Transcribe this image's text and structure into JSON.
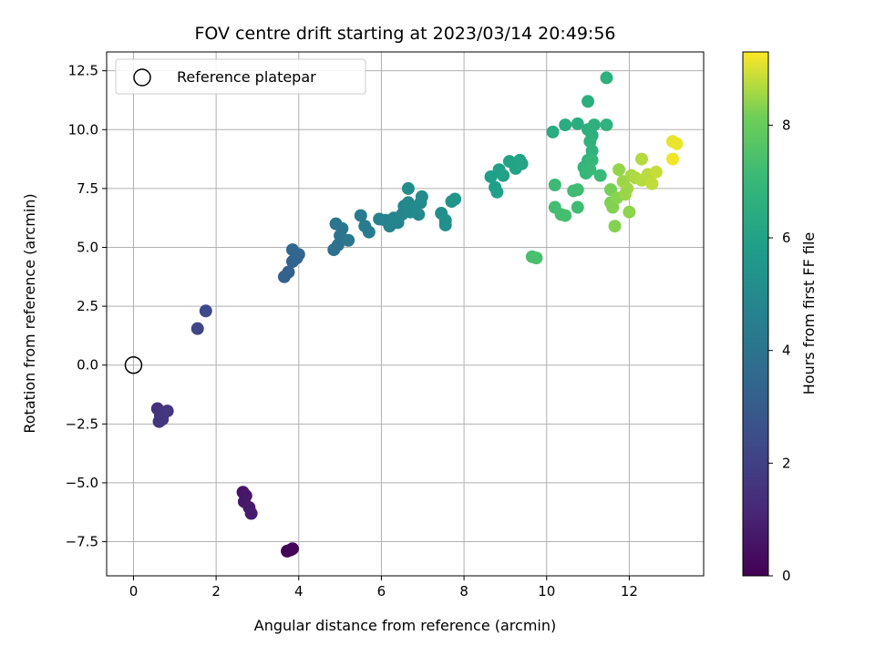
{
  "chart_data": {
    "type": "scatter",
    "title": "FOV centre drift starting at 2023/03/14 20:49:56",
    "xlabel": "Angular distance from reference (arcmin)",
    "ylabel": "Rotation from reference (arcmin)",
    "xlim": [
      -0.65,
      13.8
    ],
    "ylim": [
      -8.95,
      13.3
    ],
    "xticks": [
      0,
      2,
      4,
      6,
      8,
      10,
      12
    ],
    "yticks": [
      -7.5,
      -5.0,
      -2.5,
      0.0,
      2.5,
      5.0,
      7.5,
      10.0,
      12.5
    ],
    "xtick_labels": [
      "0",
      "2",
      "4",
      "6",
      "8",
      "10",
      "12"
    ],
    "ytick_labels": [
      "−7.5",
      "−5.0",
      "−2.5",
      "0.0",
      "2.5",
      "5.0",
      "7.5",
      "10.0",
      "12.5"
    ],
    "grid": true,
    "colormap": "viridis",
    "colorbar": {
      "label": "Hours from first FF file",
      "range": [
        0,
        9.3
      ],
      "ticks": [
        0,
        2,
        4,
        6,
        8
      ],
      "tick_labels": [
        "0",
        "2",
        "4",
        "6",
        "8"
      ]
    },
    "legend": {
      "placement": "top-left",
      "entries": [
        {
          "label": "Reference platepar",
          "marker": "open-circle"
        }
      ]
    },
    "reference_point": {
      "x": 0,
      "y": 0
    },
    "points": [
      {
        "x": 3.72,
        "y": -7.9,
        "h": 0.05
      },
      {
        "x": 3.8,
        "y": -7.85,
        "h": 0.1
      },
      {
        "x": 3.85,
        "y": -7.8,
        "h": 0.15
      },
      {
        "x": 2.65,
        "y": -5.4,
        "h": 0.6
      },
      {
        "x": 2.72,
        "y": -5.55,
        "h": 0.65
      },
      {
        "x": 2.68,
        "y": -5.8,
        "h": 0.7
      },
      {
        "x": 2.8,
        "y": -6.05,
        "h": 0.75
      },
      {
        "x": 2.85,
        "y": -6.3,
        "h": 0.8
      },
      {
        "x": 0.58,
        "y": -1.85,
        "h": 1.5
      },
      {
        "x": 0.65,
        "y": -2.15,
        "h": 1.55
      },
      {
        "x": 0.62,
        "y": -2.4,
        "h": 1.6
      },
      {
        "x": 0.7,
        "y": -2.3,
        "h": 1.62
      },
      {
        "x": 0.82,
        "y": -1.95,
        "h": 1.65
      },
      {
        "x": 1.55,
        "y": 1.55,
        "h": 2.2
      },
      {
        "x": 1.75,
        "y": 2.3,
        "h": 2.3
      },
      {
        "x": 3.65,
        "y": 3.75,
        "h": 3.2
      },
      {
        "x": 3.75,
        "y": 3.95,
        "h": 3.25
      },
      {
        "x": 3.85,
        "y": 4.4,
        "h": 3.3
      },
      {
        "x": 3.95,
        "y": 4.55,
        "h": 3.35
      },
      {
        "x": 4.0,
        "y": 4.7,
        "h": 3.4
      },
      {
        "x": 3.85,
        "y": 4.9,
        "h": 3.45
      },
      {
        "x": 4.85,
        "y": 4.9,
        "h": 3.9
      },
      {
        "x": 4.95,
        "y": 5.1,
        "h": 3.95
      },
      {
        "x": 5.0,
        "y": 5.5,
        "h": 4.0
      },
      {
        "x": 4.9,
        "y": 6.0,
        "h": 4.05
      },
      {
        "x": 5.05,
        "y": 5.8,
        "h": 4.1
      },
      {
        "x": 5.2,
        "y": 5.3,
        "h": 4.15
      },
      {
        "x": 5.5,
        "y": 6.35,
        "h": 4.3
      },
      {
        "x": 5.6,
        "y": 5.9,
        "h": 4.35
      },
      {
        "x": 5.7,
        "y": 5.65,
        "h": 4.4
      },
      {
        "x": 5.95,
        "y": 6.2,
        "h": 4.6
      },
      {
        "x": 6.1,
        "y": 6.15,
        "h": 4.65
      },
      {
        "x": 6.2,
        "y": 5.9,
        "h": 4.7
      },
      {
        "x": 6.3,
        "y": 6.25,
        "h": 4.72
      },
      {
        "x": 6.4,
        "y": 6.05,
        "h": 4.75
      },
      {
        "x": 6.5,
        "y": 6.4,
        "h": 4.8
      },
      {
        "x": 6.55,
        "y": 6.75,
        "h": 4.85
      },
      {
        "x": 6.65,
        "y": 6.9,
        "h": 4.9
      },
      {
        "x": 6.7,
        "y": 6.5,
        "h": 4.92
      },
      {
        "x": 6.8,
        "y": 6.7,
        "h": 4.95
      },
      {
        "x": 6.9,
        "y": 6.4,
        "h": 5.0
      },
      {
        "x": 6.95,
        "y": 6.9,
        "h": 5.02
      },
      {
        "x": 6.98,
        "y": 7.15,
        "h": 5.05
      },
      {
        "x": 6.65,
        "y": 7.5,
        "h": 5.1
      },
      {
        "x": 7.45,
        "y": 6.45,
        "h": 5.2
      },
      {
        "x": 7.55,
        "y": 6.15,
        "h": 5.25
      },
      {
        "x": 7.55,
        "y": 5.95,
        "h": 5.28
      },
      {
        "x": 7.7,
        "y": 6.95,
        "h": 5.35
      },
      {
        "x": 7.78,
        "y": 7.05,
        "h": 5.4
      },
      {
        "x": 8.65,
        "y": 8.0,
        "h": 5.8
      },
      {
        "x": 8.75,
        "y": 7.55,
        "h": 5.85
      },
      {
        "x": 8.8,
        "y": 7.35,
        "h": 5.9
      },
      {
        "x": 8.85,
        "y": 8.3,
        "h": 5.92
      },
      {
        "x": 8.95,
        "y": 8.05,
        "h": 5.95
      },
      {
        "x": 9.1,
        "y": 8.65,
        "h": 6.0
      },
      {
        "x": 9.25,
        "y": 8.35,
        "h": 6.05
      },
      {
        "x": 9.35,
        "y": 8.7,
        "h": 6.1
      },
      {
        "x": 9.4,
        "y": 8.55,
        "h": 6.15
      },
      {
        "x": 10.15,
        "y": 9.9,
        "h": 6.4
      },
      {
        "x": 10.45,
        "y": 10.2,
        "h": 6.45
      },
      {
        "x": 10.75,
        "y": 10.25,
        "h": 6.5
      },
      {
        "x": 11.0,
        "y": 11.2,
        "h": 6.55
      },
      {
        "x": 11.0,
        "y": 10.0,
        "h": 6.6
      },
      {
        "x": 11.1,
        "y": 9.75,
        "h": 6.62
      },
      {
        "x": 11.15,
        "y": 10.2,
        "h": 6.65
      },
      {
        "x": 11.45,
        "y": 10.2,
        "h": 6.7
      },
      {
        "x": 11.45,
        "y": 12.2,
        "h": 6.6
      },
      {
        "x": 11.05,
        "y": 9.5,
        "h": 6.75
      },
      {
        "x": 11.1,
        "y": 9.1,
        "h": 6.8
      },
      {
        "x": 11.0,
        "y": 8.7,
        "h": 6.85
      },
      {
        "x": 10.9,
        "y": 8.4,
        "h": 6.9
      },
      {
        "x": 10.95,
        "y": 8.15,
        "h": 6.95
      },
      {
        "x": 11.1,
        "y": 8.7,
        "h": 7.0
      },
      {
        "x": 11.05,
        "y": 8.3,
        "h": 7.02
      },
      {
        "x": 11.3,
        "y": 8.05,
        "h": 7.05
      },
      {
        "x": 10.2,
        "y": 7.65,
        "h": 7.1
      },
      {
        "x": 10.65,
        "y": 7.4,
        "h": 7.15
      },
      {
        "x": 10.75,
        "y": 7.45,
        "h": 7.18
      },
      {
        "x": 10.75,
        "y": 6.7,
        "h": 7.2
      },
      {
        "x": 10.2,
        "y": 6.7,
        "h": 7.25
      },
      {
        "x": 10.35,
        "y": 6.4,
        "h": 7.3
      },
      {
        "x": 10.45,
        "y": 6.35,
        "h": 7.32
      },
      {
        "x": 9.65,
        "y": 4.6,
        "h": 7.35
      },
      {
        "x": 9.75,
        "y": 4.55,
        "h": 7.4
      },
      {
        "x": 11.55,
        "y": 7.45,
        "h": 8.2
      },
      {
        "x": 11.55,
        "y": 6.9,
        "h": 8.25
      },
      {
        "x": 11.6,
        "y": 6.7,
        "h": 8.3
      },
      {
        "x": 11.7,
        "y": 7.1,
        "h": 8.35
      },
      {
        "x": 11.65,
        "y": 5.9,
        "h": 8.3
      },
      {
        "x": 12.0,
        "y": 6.5,
        "h": 8.4
      },
      {
        "x": 11.75,
        "y": 8.3,
        "h": 8.45
      },
      {
        "x": 11.85,
        "y": 7.8,
        "h": 8.5
      },
      {
        "x": 11.95,
        "y": 7.5,
        "h": 8.55
      },
      {
        "x": 12.05,
        "y": 8.05,
        "h": 8.6
      },
      {
        "x": 12.15,
        "y": 7.95,
        "h": 8.65
      },
      {
        "x": 12.3,
        "y": 8.75,
        "h": 8.7
      },
      {
        "x": 12.3,
        "y": 7.85,
        "h": 8.72
      },
      {
        "x": 12.45,
        "y": 8.1,
        "h": 8.75
      },
      {
        "x": 12.55,
        "y": 7.7,
        "h": 8.8
      },
      {
        "x": 12.65,
        "y": 8.2,
        "h": 8.85
      },
      {
        "x": 11.9,
        "y": 7.25,
        "h": 8.5
      },
      {
        "x": 13.05,
        "y": 9.5,
        "h": 9.1
      },
      {
        "x": 13.15,
        "y": 9.4,
        "h": 9.15
      },
      {
        "x": 13.05,
        "y": 8.75,
        "h": 9.2
      }
    ]
  }
}
